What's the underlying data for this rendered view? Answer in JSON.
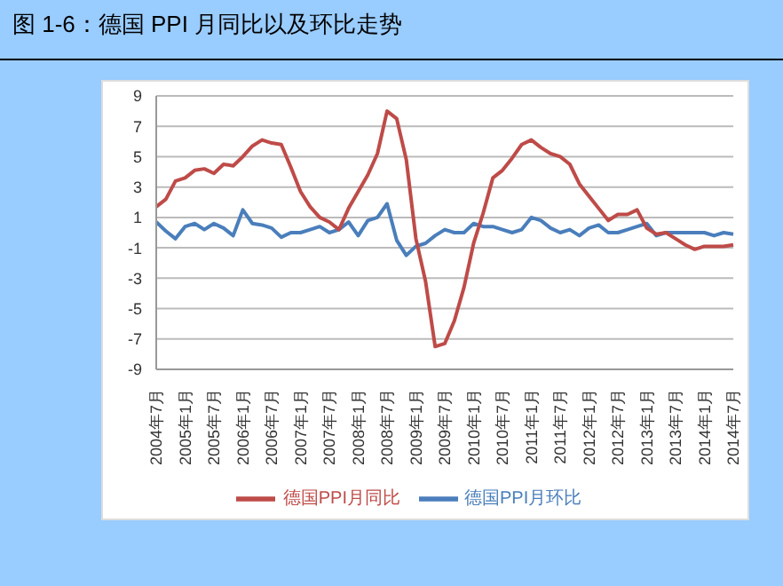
{
  "chart_data": {
    "type": "line",
    "title": "图 1-6：德国 PPI 月同比以及环比走势",
    "categories": [
      "2004年7月",
      null,
      null,
      "2005年1月",
      null,
      null,
      "2005年7月",
      null,
      null,
      "2006年1月",
      null,
      null,
      "2006年7月",
      null,
      null,
      "2007年1月",
      null,
      null,
      "2007年7月",
      null,
      null,
      "2008年1月",
      null,
      null,
      "2008年7月",
      null,
      null,
      "2009年1月",
      null,
      null,
      "2009年7月",
      null,
      null,
      "2010年1月",
      null,
      null,
      "2010年7月",
      null,
      null,
      "2011年1月",
      null,
      null,
      "2011年7月",
      null,
      null,
      "2012年1月",
      null,
      null,
      "2012年7月",
      null,
      null,
      "2013年1月",
      null,
      null,
      "2013年7月",
      null,
      null,
      "2014年1月",
      null,
      null,
      "2014年7月"
    ],
    "series": [
      {
        "name": "德国PPI月环比",
        "color": "#4a7ebb",
        "values": [
          0.7,
          0.1,
          -0.4,
          0.4,
          0.6,
          0.2,
          0.6,
          0.3,
          -0.2,
          1.5,
          0.6,
          0.5,
          0.3,
          -0.3,
          0,
          0,
          0.2,
          0.4,
          0,
          0.2,
          0.7,
          -0.2,
          0.8,
          1.0,
          1.9,
          -0.5,
          -1.5,
          -0.9,
          -0.7,
          -0.2,
          0.2,
          0,
          0,
          0.6,
          0.4,
          0.4,
          0.2,
          0,
          0.2,
          1.0,
          0.8,
          0.3,
          0,
          0.2,
          -0.2,
          0.3,
          0.5,
          0,
          0,
          0.2,
          0.4,
          0.6,
          -0.2,
          0,
          0,
          0,
          0,
          0,
          -0.2,
          0,
          -0.1
        ]
      },
      {
        "name": "德国PPI月同比",
        "color": "#be4b48",
        "values": [
          1.7,
          2.2,
          3.4,
          3.6,
          4.1,
          4.2,
          3.9,
          4.5,
          4.4,
          5.0,
          5.7,
          6.1,
          5.9,
          5.8,
          4.3,
          2.7,
          1.7,
          1.0,
          0.7,
          0.2,
          1.6,
          2.7,
          3.8,
          5.2,
          8.0,
          7.5,
          4.8,
          -0.4,
          -3.2,
          -7.5,
          -7.3,
          -5.8,
          -3.6,
          -0.7,
          1.3,
          3.6,
          4.1,
          4.9,
          5.8,
          6.1,
          5.6,
          5.2,
          5.0,
          4.5,
          3.2,
          2.4,
          1.6,
          0.8,
          1.2,
          1.2,
          1.5,
          0.3,
          -0.1,
          0,
          -0.4,
          -0.8,
          -1.1,
          -0.9,
          -0.9,
          -0.9,
          -0.8
        ]
      }
    ],
    "ylim": [
      -9,
      9
    ],
    "yticks": [
      -9,
      -7,
      -5,
      -3,
      -1,
      1,
      3,
      5,
      7,
      9
    ],
    "grid": "y",
    "legend": "bottom"
  }
}
